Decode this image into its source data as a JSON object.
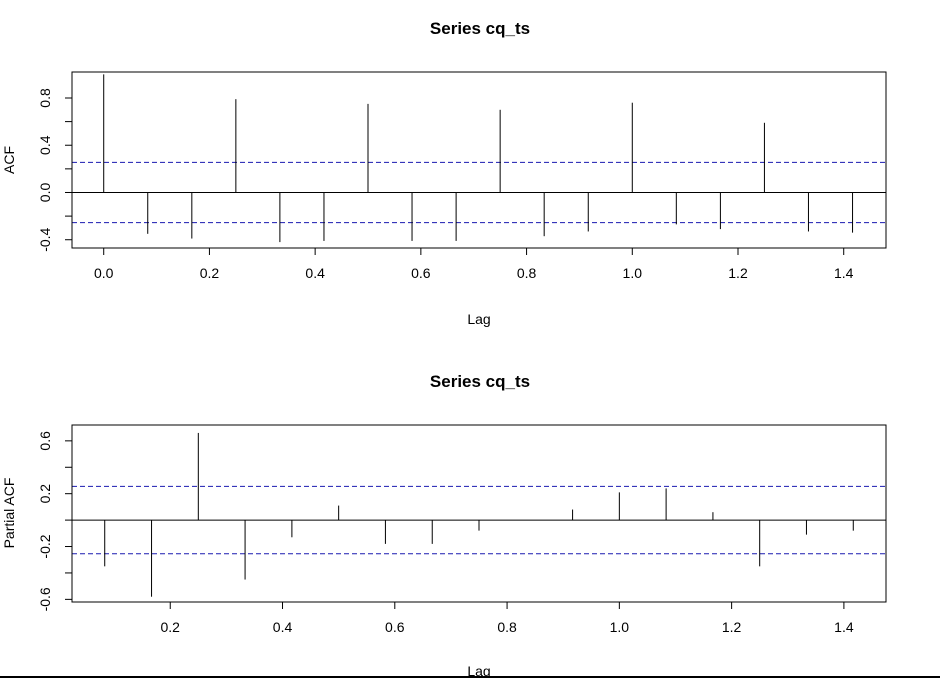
{
  "chart_data": [
    {
      "type": "bar",
      "title": "Series  cq_ts",
      "xlabel": "Lag",
      "ylabel": "ACF",
      "xlim": [
        -0.06,
        1.48
      ],
      "ylim": [
        -0.47,
        1.02
      ],
      "xticks": [
        "0.0",
        "0.2",
        "0.4",
        "0.6",
        "0.8",
        "1.0",
        "1.2",
        "1.4"
      ],
      "xtick_values": [
        0.0,
        0.2,
        0.4,
        0.6,
        0.8,
        1.0,
        1.2,
        1.4
      ],
      "yticks": [
        "-0.4",
        "0.0",
        "0.4",
        "0.8"
      ],
      "ytick_values": [
        -0.4,
        0.0,
        0.4,
        0.8
      ],
      "ci": 0.255,
      "x": [
        0.0,
        0.0833,
        0.1667,
        0.25,
        0.3333,
        0.4167,
        0.5,
        0.5833,
        0.6667,
        0.75,
        0.8333,
        0.9167,
        1.0,
        1.0833,
        1.1667,
        1.25,
        1.3333,
        1.4167
      ],
      "values": [
        1.0,
        -0.35,
        -0.39,
        0.79,
        -0.42,
        -0.41,
        0.75,
        -0.41,
        -0.41,
        0.7,
        -0.37,
        -0.33,
        0.76,
        -0.27,
        -0.31,
        0.59,
        -0.33,
        -0.34
      ],
      "colors": {
        "bar": "#000000",
        "ci": "#1a1ab0",
        "zero": "#000000"
      }
    },
    {
      "type": "bar",
      "title": "Series  cq_ts",
      "xlabel": "Lag",
      "ylabel": "Partial ACF",
      "xlim": [
        0.025,
        1.475
      ],
      "ylim": [
        -0.62,
        0.72
      ],
      "xticks": [
        "0.2",
        "0.4",
        "0.6",
        "0.8",
        "1.0",
        "1.2",
        "1.4"
      ],
      "xtick_values": [
        0.2,
        0.4,
        0.6,
        0.8,
        1.0,
        1.2,
        1.4
      ],
      "yticks": [
        "-0.6",
        "-0.2",
        "0.2",
        "0.6"
      ],
      "ytick_values": [
        -0.6,
        -0.2,
        0.2,
        0.6
      ],
      "ci": 0.255,
      "x": [
        0.0833,
        0.1667,
        0.25,
        0.3333,
        0.4167,
        0.5,
        0.5833,
        0.6667,
        0.75,
        0.8333,
        0.9167,
        1.0,
        1.0833,
        1.1667,
        1.25,
        1.3333,
        1.4167
      ],
      "values": [
        -0.35,
        -0.58,
        0.66,
        -0.45,
        -0.13,
        0.11,
        -0.18,
        -0.18,
        -0.08,
        0.0,
        0.08,
        0.21,
        0.24,
        0.06,
        -0.35,
        -0.11,
        -0.08
      ],
      "colors": {
        "bar": "#000000",
        "ci": "#1a1ab0",
        "zero": "#000000"
      }
    }
  ]
}
